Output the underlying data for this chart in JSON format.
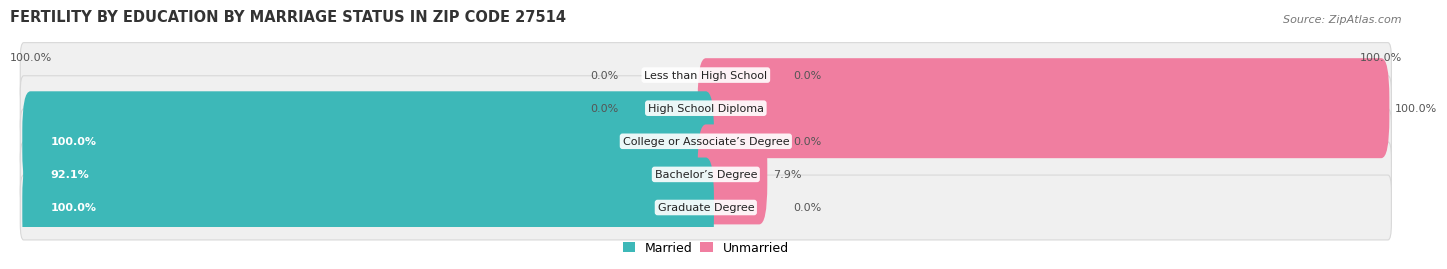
{
  "title": "FERTILITY BY EDUCATION BY MARRIAGE STATUS IN ZIP CODE 27514",
  "source": "Source: ZipAtlas.com",
  "categories": [
    "Less than High School",
    "High School Diploma",
    "College or Associate’s Degree",
    "Bachelor’s Degree",
    "Graduate Degree"
  ],
  "married": [
    0.0,
    0.0,
    100.0,
    92.1,
    100.0
  ],
  "unmarried": [
    0.0,
    100.0,
    0.0,
    7.9,
    0.0
  ],
  "married_color": "#3db8b8",
  "unmarried_color": "#f07ea0",
  "row_bg_color": "#f0f0f0",
  "row_border_color": "#d8d8d8",
  "title_fontsize": 10.5,
  "label_fontsize": 8.0,
  "legend_fontsize": 9,
  "source_fontsize": 8,
  "figsize": [
    14.06,
    2.69
  ],
  "dpi": 100
}
